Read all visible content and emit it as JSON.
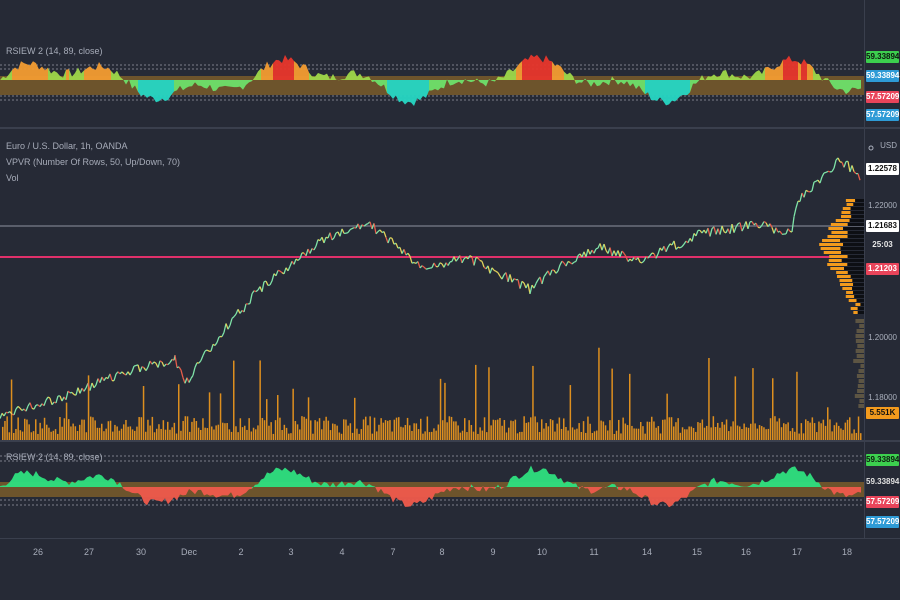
{
  "top_indicator": {
    "legend": "RSIEW 2 (14, 89, close)",
    "tags": [
      {
        "text": "59.33894",
        "bg": "#3ccf4e",
        "fg": "#0e1a10"
      },
      {
        "text": "59.33894",
        "bg": "#2e9bd6",
        "fg": "#ffffff"
      },
      {
        "text": "57.57209",
        "bg": "#e9445a",
        "fg": "#ffffff"
      },
      {
        "text": "57.57209",
        "bg": "#2e9bd6",
        "fg": "#ffffff"
      }
    ]
  },
  "main": {
    "title": "Euro / U.S. Dollar, 1h, OANDA",
    "vpvr": "VPVR (Number Of Rows, 50, Up/Down, 70)",
    "vol": "Vol",
    "currency": "USD",
    "price_ticks": [
      "1.22000",
      "1.20000",
      "1.18000"
    ],
    "tags": [
      {
        "text": "1.22578",
        "bg": "#ffffff",
        "fg": "#111111"
      },
      {
        "text": "1.21683",
        "bg": "#ffffff",
        "fg": "#111111"
      },
      {
        "text": "25:03",
        "bg": "#262a36",
        "fg": "#e8e8e8"
      },
      {
        "text": "1.21203",
        "bg": "#e9445a",
        "fg": "#ffffff"
      },
      {
        "text": "5.551K",
        "bg": "#f29a1d",
        "fg": "#111111"
      }
    ]
  },
  "bottom_indicator": {
    "legend": "RSIEW 2 (14, 89, close)",
    "tags": [
      {
        "text": "59.33894",
        "bg": "#3ccf4e",
        "fg": "#0e1a10"
      },
      {
        "text": "59.33894",
        "bg": "#262a36",
        "fg": "#e0e0e0"
      },
      {
        "text": "57.57209",
        "bg": "#e9445a",
        "fg": "#ffffff"
      },
      {
        "text": "57.57209",
        "bg": "#2e9bd6",
        "fg": "#ffffff"
      }
    ]
  },
  "time_axis": [
    "26",
    "27",
    "30",
    "Dec",
    "2",
    "3",
    "4",
    "7",
    "8",
    "9",
    "10",
    "11",
    "14",
    "15",
    "16",
    "17",
    "18"
  ],
  "colors": {
    "background": "#262a36",
    "volume": "#f29a1d",
    "horizontal_line": "#e0306a",
    "rsi_up": "#2ee07f",
    "rsi_down": "#ef5a4c",
    "rsi_band": "#7a5c2a"
  }
}
